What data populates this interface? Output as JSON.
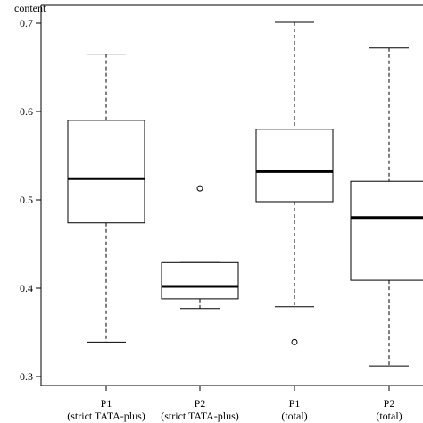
{
  "chart_data": {
    "type": "box",
    "ylabel": "content",
    "ylim": [
      0.295,
      0.725
    ],
    "yticks": [
      0.3,
      0.4,
      0.5,
      0.6,
      0.7
    ],
    "ytick_labels": [
      "0.3",
      "0.4",
      "0.5",
      "0.6",
      "0.7"
    ],
    "categories": [
      {
        "line1": "P1",
        "line2": "(strict TATA-plus)"
      },
      {
        "line1": "P2",
        "line2": "(strict TATA-plus)"
      },
      {
        "line1": "P1",
        "line2": "(total)"
      },
      {
        "line1": "P2",
        "line2": "(total)"
      }
    ],
    "boxes": [
      {
        "min": 0.339,
        "q1": 0.474,
        "median": 0.524,
        "q3": 0.59,
        "max": 0.665,
        "outliers": []
      },
      {
        "min": 0.377,
        "q1": 0.388,
        "median": 0.402,
        "q3": 0.429,
        "max": 0.429,
        "outliers": [
          0.513
        ]
      },
      {
        "min": 0.379,
        "q1": 0.498,
        "median": 0.532,
        "q3": 0.58,
        "max": 0.701,
        "outliers": [
          0.339
        ]
      },
      {
        "min": 0.312,
        "q1": 0.409,
        "median": 0.48,
        "q3": 0.521,
        "max": 0.672,
        "outliers": []
      }
    ],
    "grid": false,
    "legend": "none"
  }
}
